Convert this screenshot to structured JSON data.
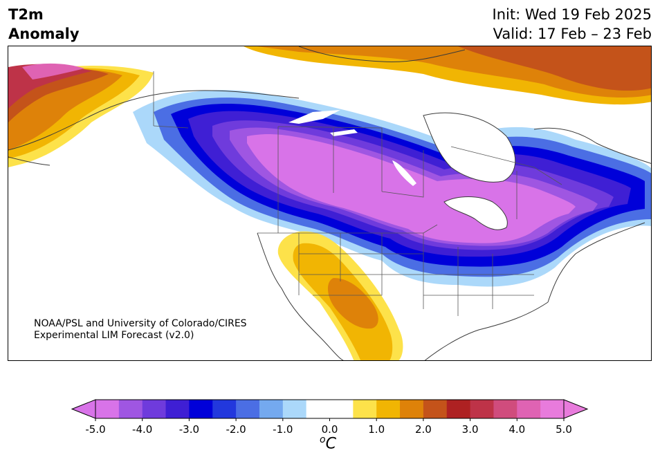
{
  "title": {
    "left_line1": "T2m",
    "left_line2": "Anomaly",
    "right_line1": "Init: Wed 19 Feb 2025",
    "right_line2": "Valid: 17 Feb – 23 Feb"
  },
  "credit": {
    "line1": "NOAA/PSL and University of Colorado/CIRES",
    "line2": "Experimental LIM Forecast (v2.0)"
  },
  "colorbar": {
    "unit": "°C",
    "unit_sup": "o",
    "unit_main": "C",
    "ticks": [
      "-5.0",
      "-4.0",
      "-3.0",
      "-2.0",
      "-1.0",
      "0.0",
      "1.0",
      "2.0",
      "3.0",
      "4.0",
      "5.0"
    ],
    "levels": [
      -5.0,
      -4.5,
      -4.0,
      -3.5,
      -3.0,
      -2.5,
      -2.0,
      -1.5,
      -1.0,
      -0.5,
      0.5,
      1.0,
      1.5,
      2.0,
      2.5,
      3.0,
      3.5,
      4.0,
      4.5,
      5.0
    ],
    "colors": [
      "#d873e8",
      "#9f56e2",
      "#6f3bdc",
      "#3f1fd4",
      "#0000d9",
      "#2238dd",
      "#4b6ee4",
      "#74a9ef",
      "#abd8fa",
      "#ffffff",
      "#ffffff",
      "#fde24a",
      "#f1b503",
      "#de8209",
      "#c4531a",
      "#ae2122",
      "#be3348",
      "#d04c7d",
      "#df63b3",
      "#e87bdc"
    ],
    "extend_low_color": "#d873e8",
    "extend_high_color": "#e87bdc"
  },
  "map": {
    "region": "North America",
    "colors": {
      "deep_purple": "#d873e8",
      "purple": "#9f56e2",
      "blue_violet": "#3f1fd4",
      "blue": "#0000d9",
      "mid_blue": "#4b6ee4",
      "light_blue": "#abd8fa",
      "yellow": "#fde24a",
      "orange_yellow": "#f1b503",
      "orange": "#de8209",
      "dark_orange": "#c4531a",
      "red": "#ae2122",
      "pink": "#df63b3",
      "coast": "#3a3a3a"
    }
  }
}
